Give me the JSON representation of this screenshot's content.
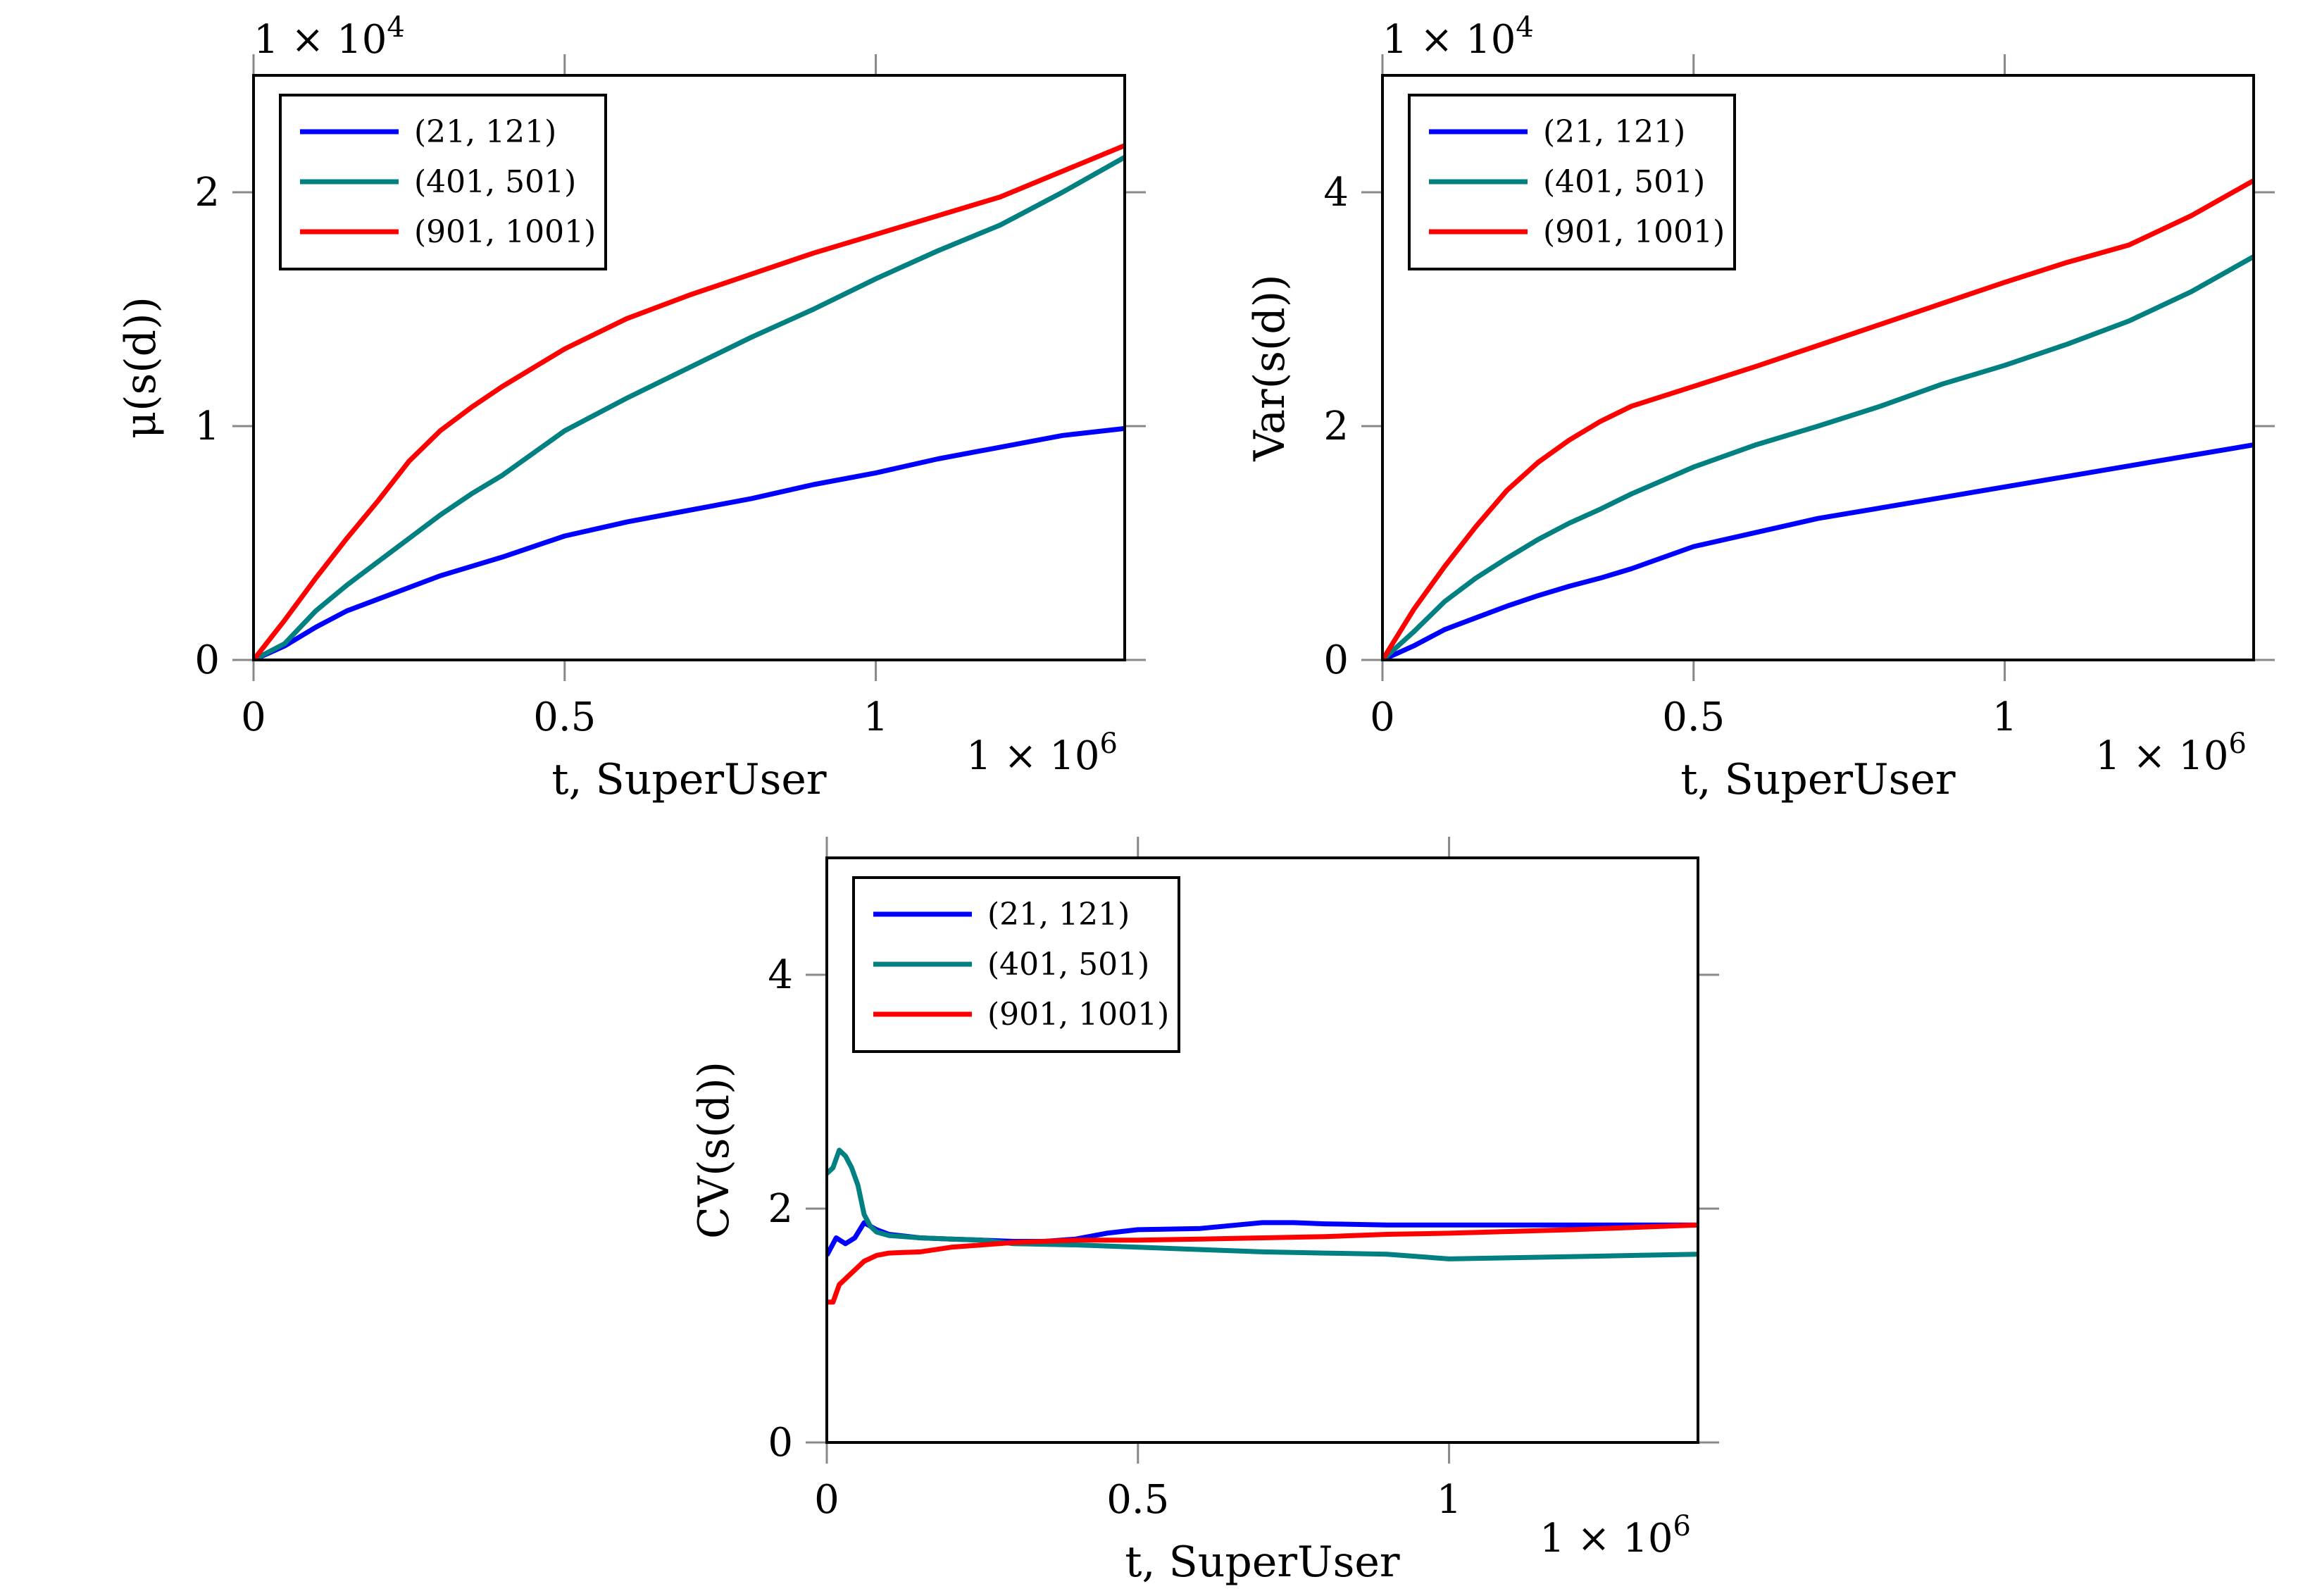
{
  "chart_data": [
    {
      "type": "line",
      "id": "mean",
      "title": "",
      "xlabel": "t, SuperUser",
      "ylabel": "μ(s(d))",
      "xlim": [
        0,
        1400000
      ],
      "ylim": [
        0,
        25000
      ],
      "xticks": [
        0,
        500000,
        1000000
      ],
      "xtick_labels": [
        "0",
        "0.5",
        "1"
      ],
      "yticks": [
        0,
        10000,
        20000
      ],
      "ytick_labels": [
        "0",
        "1",
        "2"
      ],
      "x_multiplier": "1 × 10^6",
      "y_multiplier": "1 × 10^4",
      "legend_position": "top-left",
      "series": [
        {
          "name": "(21, 121)",
          "color": "#0000ff",
          "points": [
            [
              0,
              0
            ],
            [
              50000,
              600
            ],
            [
              100000,
              1400
            ],
            [
              150000,
              2100
            ],
            [
              200000,
              2600
            ],
            [
              250000,
              3100
            ],
            [
              300000,
              3600
            ],
            [
              350000,
              4000
            ],
            [
              400000,
              4400
            ],
            [
              500000,
              5300
            ],
            [
              600000,
              5900
            ],
            [
              700000,
              6400
            ],
            [
              800000,
              6900
            ],
            [
              900000,
              7500
            ],
            [
              1000000,
              8000
            ],
            [
              1100000,
              8600
            ],
            [
              1200000,
              9100
            ],
            [
              1300000,
              9600
            ],
            [
              1400000,
              9900
            ]
          ]
        },
        {
          "name": "(401, 501)",
          "color": "#008080",
          "points": [
            [
              0,
              0
            ],
            [
              50000,
              700
            ],
            [
              100000,
              2100
            ],
            [
              150000,
              3200
            ],
            [
              200000,
              4200
            ],
            [
              250000,
              5200
            ],
            [
              300000,
              6200
            ],
            [
              350000,
              7100
            ],
            [
              400000,
              7900
            ],
            [
              500000,
              9800
            ],
            [
              600000,
              11200
            ],
            [
              700000,
              12500
            ],
            [
              800000,
              13800
            ],
            [
              900000,
              15000
            ],
            [
              1000000,
              16300
            ],
            [
              1100000,
              17500
            ],
            [
              1200000,
              18600
            ],
            [
              1300000,
              20000
            ],
            [
              1400000,
              21500
            ]
          ]
        },
        {
          "name": "(901, 1001)",
          "color": "#ff0000",
          "points": [
            [
              0,
              0
            ],
            [
              50000,
              1700
            ],
            [
              100000,
              3500
            ],
            [
              150000,
              5200
            ],
            [
              200000,
              6800
            ],
            [
              250000,
              8500
            ],
            [
              300000,
              9800
            ],
            [
              350000,
              10800
            ],
            [
              400000,
              11700
            ],
            [
              500000,
              13300
            ],
            [
              600000,
              14600
            ],
            [
              700000,
              15600
            ],
            [
              800000,
              16500
            ],
            [
              900000,
              17400
            ],
            [
              1000000,
              18200
            ],
            [
              1100000,
              19000
            ],
            [
              1200000,
              19800
            ],
            [
              1300000,
              20900
            ],
            [
              1400000,
              22000
            ]
          ]
        }
      ]
    },
    {
      "type": "line",
      "id": "variance",
      "title": "",
      "xlabel": "t, SuperUser",
      "ylabel": "Var(s(d))",
      "xlim": [
        0,
        1400000
      ],
      "ylim": [
        0,
        50000
      ],
      "xticks": [
        0,
        500000,
        1000000
      ],
      "xtick_labels": [
        "0",
        "0.5",
        "1"
      ],
      "yticks": [
        0,
        20000,
        40000
      ],
      "ytick_labels": [
        "0",
        "2",
        "4"
      ],
      "x_multiplier": "1 × 10^6",
      "y_multiplier": "1 × 10^4",
      "legend_position": "top-left",
      "series": [
        {
          "name": "(21, 121)",
          "color": "#0000ff",
          "points": [
            [
              0,
              0
            ],
            [
              50000,
              1200
            ],
            [
              100000,
              2600
            ],
            [
              150000,
              3600
            ],
            [
              200000,
              4600
            ],
            [
              250000,
              5500
            ],
            [
              300000,
              6300
            ],
            [
              350000,
              7000
            ],
            [
              400000,
              7800
            ],
            [
              500000,
              9700
            ],
            [
              600000,
              10900
            ],
            [
              700000,
              12100
            ],
            [
              800000,
              13000
            ],
            [
              900000,
              13900
            ],
            [
              1000000,
              14800
            ],
            [
              1100000,
              15700
            ],
            [
              1200000,
              16600
            ],
            [
              1300000,
              17500
            ],
            [
              1400000,
              18400
            ]
          ]
        },
        {
          "name": "(401, 501)",
          "color": "#008080",
          "points": [
            [
              0,
              0
            ],
            [
              50000,
              2400
            ],
            [
              100000,
              5000
            ],
            [
              150000,
              7000
            ],
            [
              200000,
              8700
            ],
            [
              250000,
              10300
            ],
            [
              300000,
              11700
            ],
            [
              350000,
              12900
            ],
            [
              400000,
              14200
            ],
            [
              500000,
              16500
            ],
            [
              600000,
              18400
            ],
            [
              700000,
              20000
            ],
            [
              800000,
              21700
            ],
            [
              900000,
              23600
            ],
            [
              1000000,
              25200
            ],
            [
              1100000,
              27000
            ],
            [
              1200000,
              29000
            ],
            [
              1300000,
              31500
            ],
            [
              1400000,
              34500
            ]
          ]
        },
        {
          "name": "(901, 1001)",
          "color": "#ff0000",
          "points": [
            [
              0,
              0
            ],
            [
              50000,
              4300
            ],
            [
              100000,
              8000
            ],
            [
              150000,
              11400
            ],
            [
              200000,
              14500
            ],
            [
              250000,
              16900
            ],
            [
              300000,
              18800
            ],
            [
              350000,
              20400
            ],
            [
              400000,
              21700
            ],
            [
              500000,
              23400
            ],
            [
              600000,
              25100
            ],
            [
              700000,
              26900
            ],
            [
              800000,
              28700
            ],
            [
              900000,
              30500
            ],
            [
              1000000,
              32300
            ],
            [
              1100000,
              34000
            ],
            [
              1200000,
              35500
            ],
            [
              1300000,
              38000
            ],
            [
              1400000,
              41000
            ]
          ]
        }
      ]
    },
    {
      "type": "line",
      "id": "cv",
      "title": "",
      "xlabel": "t, SuperUser",
      "ylabel": "CV(s(d))",
      "xlim": [
        0,
        1400000
      ],
      "ylim": [
        0,
        5
      ],
      "xticks": [
        0,
        500000,
        1000000
      ],
      "xtick_labels": [
        "0",
        "0.5",
        "1"
      ],
      "yticks": [
        0,
        2,
        4
      ],
      "ytick_labels": [
        "0",
        "2",
        "4"
      ],
      "x_multiplier": "1 × 10^6",
      "y_multiplier": "",
      "legend_position": "top-left",
      "series": [
        {
          "name": "(21, 121)",
          "color": "#0000ff",
          "points": [
            [
              0,
              1.6
            ],
            [
              15000,
              1.75
            ],
            [
              30000,
              1.7
            ],
            [
              45000,
              1.75
            ],
            [
              60000,
              1.88
            ],
            [
              80000,
              1.82
            ],
            [
              100000,
              1.78
            ],
            [
              150000,
              1.75
            ],
            [
              200000,
              1.74
            ],
            [
              250000,
              1.73
            ],
            [
              300000,
              1.72
            ],
            [
              350000,
              1.72
            ],
            [
              400000,
              1.74
            ],
            [
              450000,
              1.79
            ],
            [
              500000,
              1.82
            ],
            [
              600000,
              1.83
            ],
            [
              700000,
              1.88
            ],
            [
              750000,
              1.88
            ],
            [
              800000,
              1.87
            ],
            [
              900000,
              1.86
            ],
            [
              1000000,
              1.86
            ],
            [
              1200000,
              1.86
            ],
            [
              1400000,
              1.86
            ]
          ]
        },
        {
          "name": "(401, 501)",
          "color": "#008080",
          "points": [
            [
              0,
              2.3
            ],
            [
              10000,
              2.35
            ],
            [
              20000,
              2.5
            ],
            [
              30000,
              2.45
            ],
            [
              40000,
              2.35
            ],
            [
              50000,
              2.2
            ],
            [
              60000,
              1.95
            ],
            [
              70000,
              1.85
            ],
            [
              80000,
              1.8
            ],
            [
              100000,
              1.77
            ],
            [
              150000,
              1.75
            ],
            [
              200000,
              1.74
            ],
            [
              250000,
              1.73
            ],
            [
              300000,
              1.7
            ],
            [
              400000,
              1.69
            ],
            [
              500000,
              1.67
            ],
            [
              600000,
              1.65
            ],
            [
              700000,
              1.63
            ],
            [
              800000,
              1.62
            ],
            [
              900000,
              1.61
            ],
            [
              1000000,
              1.57
            ],
            [
              1100000,
              1.58
            ],
            [
              1200000,
              1.59
            ],
            [
              1300000,
              1.6
            ],
            [
              1400000,
              1.61
            ]
          ]
        },
        {
          "name": "(901, 1001)",
          "color": "#ff0000",
          "points": [
            [
              0,
              1.2
            ],
            [
              10000,
              1.2
            ],
            [
              20000,
              1.35
            ],
            [
              40000,
              1.45
            ],
            [
              60000,
              1.55
            ],
            [
              80000,
              1.6
            ],
            [
              100000,
              1.62
            ],
            [
              150000,
              1.63
            ],
            [
              200000,
              1.67
            ],
            [
              250000,
              1.69
            ],
            [
              300000,
              1.71
            ],
            [
              400000,
              1.73
            ],
            [
              500000,
              1.73
            ],
            [
              600000,
              1.74
            ],
            [
              700000,
              1.75
            ],
            [
              800000,
              1.76
            ],
            [
              900000,
              1.78
            ],
            [
              1000000,
              1.79
            ],
            [
              1200000,
              1.82
            ],
            [
              1400000,
              1.86
            ]
          ]
        }
      ]
    }
  ]
}
